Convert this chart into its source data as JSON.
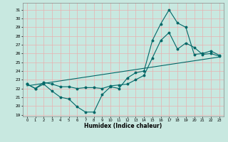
{
  "xlabel": "Humidex (Indice chaleur)",
  "bg_color": "#c8e8e0",
  "grid_color": "#e8b0b0",
  "line_color": "#006868",
  "xlim": [
    -0.5,
    23.5
  ],
  "ylim": [
    18.8,
    31.8
  ],
  "yticks": [
    19,
    20,
    21,
    22,
    23,
    24,
    25,
    26,
    27,
    28,
    29,
    30,
    31
  ],
  "xticks": [
    0,
    1,
    2,
    3,
    4,
    5,
    6,
    7,
    8,
    9,
    10,
    11,
    12,
    13,
    14,
    15,
    16,
    17,
    18,
    19,
    20,
    21,
    22,
    23
  ],
  "line1_x": [
    0,
    1,
    2,
    3,
    4,
    5,
    6,
    7,
    8,
    9,
    10,
    11,
    12,
    13,
    14,
    15,
    16,
    17,
    18,
    19,
    20,
    21,
    22,
    23
  ],
  "line1_y": [
    22.5,
    22.0,
    22.5,
    21.7,
    21.0,
    20.8,
    19.9,
    19.3,
    19.3,
    21.3,
    22.2,
    22.0,
    23.2,
    23.8,
    24.0,
    27.5,
    29.4,
    31.0,
    29.5,
    29.0,
    25.9,
    26.0,
    26.3,
    25.8
  ],
  "line2_x": [
    0,
    1,
    2,
    3,
    4,
    5,
    6,
    7,
    8,
    9,
    10,
    11,
    12,
    13,
    14,
    15,
    16,
    17,
    18,
    19,
    20,
    21,
    22,
    23
  ],
  "line2_y": [
    22.5,
    22.0,
    22.7,
    22.5,
    22.2,
    22.2,
    22.0,
    22.1,
    22.1,
    22.0,
    22.3,
    22.4,
    22.5,
    23.0,
    23.5,
    25.5,
    27.5,
    28.4,
    26.5,
    27.2,
    26.7,
    25.9,
    26.0,
    25.7
  ],
  "line3_x": [
    0,
    23
  ],
  "line3_y": [
    22.3,
    25.6
  ]
}
